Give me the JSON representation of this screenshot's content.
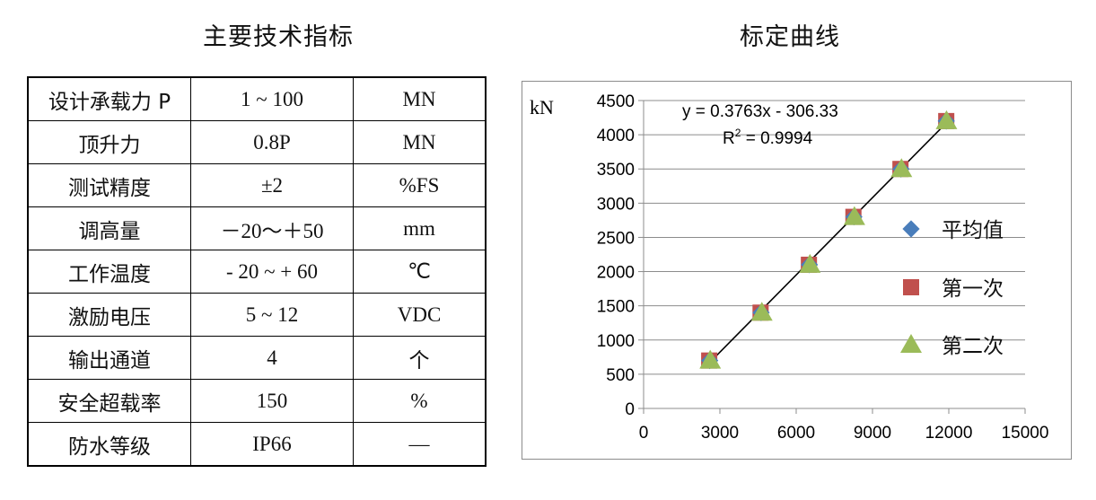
{
  "table_title": "主要技术指标",
  "chart_title": "标定曲线",
  "spec_rows": [
    {
      "name": "设计承载力 P",
      "value": "1 ~ 100",
      "unit": "MN"
    },
    {
      "name": "顶升力",
      "value": "0.8P",
      "unit": "MN"
    },
    {
      "name": "测试精度",
      "value": "±2",
      "unit": "%FS"
    },
    {
      "name": "调高量",
      "value": "－20～＋50",
      "unit": "mm"
    },
    {
      "name": "工作温度",
      "value": "- 20 ~ + 60",
      "unit": "℃"
    },
    {
      "name": "激励电压",
      "value": "5 ~ 12",
      "unit": "VDC"
    },
    {
      "name": "输出通道",
      "value": "4",
      "unit": "个"
    },
    {
      "name": "安全超载率",
      "value": "150",
      "unit": "%"
    },
    {
      "name": "防水等级",
      "value": "IP66",
      "unit": "—"
    }
  ],
  "chart_data": {
    "type": "scatter",
    "title": "标定曲线",
    "ylabel": "kN",
    "xlabel": "",
    "xlim": [
      0,
      15000
    ],
    "ylim": [
      0,
      4500
    ],
    "x_ticks": [
      0,
      3000,
      6000,
      9000,
      12000,
      15000
    ],
    "y_ticks": [
      0,
      500,
      1000,
      1500,
      2000,
      2500,
      3000,
      3500,
      4000,
      4500
    ],
    "grid": "horizontal",
    "legend_position": "right",
    "series": [
      {
        "name": "平均值",
        "marker": "diamond",
        "color": "#4a7ebb",
        "points": [
          [
            2600,
            700
          ],
          [
            4620,
            1400
          ],
          [
            6520,
            2100
          ],
          [
            8270,
            2800
          ],
          [
            10120,
            3500
          ],
          [
            11900,
            4200
          ]
        ]
      },
      {
        "name": "第一次",
        "marker": "square",
        "color": "#c0504d",
        "points": [
          [
            2580,
            700
          ],
          [
            4600,
            1400
          ],
          [
            6500,
            2100
          ],
          [
            8250,
            2800
          ],
          [
            10100,
            3500
          ],
          [
            11900,
            4200
          ]
        ]
      },
      {
        "name": "第二次",
        "marker": "triangle",
        "color": "#9bbb59",
        "points": [
          [
            2620,
            700
          ],
          [
            4650,
            1400
          ],
          [
            6540,
            2100
          ],
          [
            8290,
            2800
          ],
          [
            10140,
            3500
          ],
          [
            11910,
            4200
          ]
        ]
      }
    ],
    "trendline": {
      "slope": 0.3763,
      "intercept": -306.33,
      "x_range": [
        2500,
        12000
      ],
      "color": "#000000",
      "equation": "y = 0.3763x - 306.33",
      "r2_prefix": "R",
      "r2_sup": "2",
      "r2_value": " = 0.9994"
    }
  }
}
